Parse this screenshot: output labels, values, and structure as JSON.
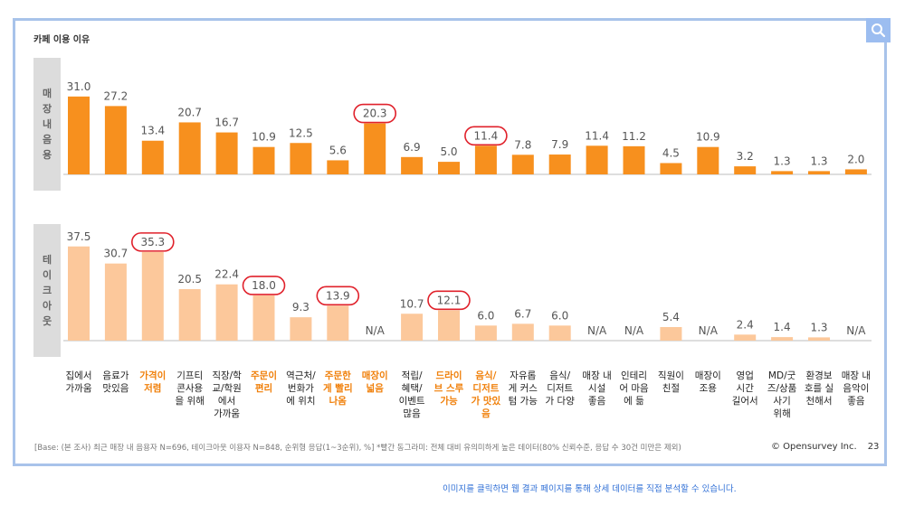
{
  "title": "카페 이용 이유",
  "side_labels": {
    "top": "매장내음용",
    "bottom": "테이크아웃"
  },
  "footnote": "[Base: (본 조사) 최근 매장 내 음용자 N=696, 테이크아웃 이용자 N=848, 순위형 응답(1~3순위), %] *빨간 동그라미: 전체 대비 유의미하게 높은 데이터(80% 신뢰수준, 응답 수 30건 미만은 제외)",
  "copyright": "© Opensurvey Inc.",
  "page_number": "23",
  "click_hint": "이미지를 클릭하면 웹 결과 페이지를 통해 상세 데이터를 직접 분석할 수 있습니다.",
  "icons": {
    "search": "search-icon"
  },
  "colors": {
    "dine_in": "#f7901e",
    "takeout": "#fcc89b",
    "highlight_text": "#f07f09",
    "circle": "#e0212b",
    "border": "#a8c3ea"
  },
  "chart_data": {
    "type": "bar",
    "title": "카페 이용 이유",
    "categories": [
      "집에서\n가까움",
      "음료가\n맛있음",
      "가격이\n저렴",
      "기프티\n콘사용\n을 위해",
      "직장/학\n교/학원\n에서\n가까움",
      "주문이\n편리",
      "역근처/\n번화가\n에 위치",
      "주문한\n게 빨리\n나옴",
      "매장이\n넓음",
      "적립/\n혜택/\n이벤트\n많음",
      "드라이\n브 스루\n가능",
      "음식/\n디저트\n가 맛있\n음",
      "자유롭\n게 커스\n텀 가능",
      "음식/\n디저트\n가 다양",
      "매장 내\n시설\n좋음",
      "인테리\n어 마음\n에 듦",
      "직원이\n친절",
      "매장이\n조용",
      "영업\n시간\n길어서",
      "MD/굿\n즈/상품\n사기\n위해",
      "환경보\n호를 실\n천해서",
      "매장 내\n음악이\n좋음"
    ],
    "highlighted_categories": [
      2,
      5,
      7,
      8,
      10,
      11
    ],
    "series": [
      {
        "name": "매장내음용",
        "values": [
          31.0,
          27.2,
          13.4,
          20.7,
          16.7,
          10.9,
          12.5,
          5.6,
          20.3,
          6.9,
          5.0,
          11.4,
          7.8,
          7.9,
          11.4,
          11.2,
          4.5,
          10.9,
          3.2,
          1.3,
          1.3,
          2.0
        ],
        "labels": [
          "31.0",
          "27.2",
          "13.4",
          "20.7",
          "16.7",
          "10.9",
          "12.5",
          "5.6",
          "20.3",
          "6.9",
          "5.0",
          "11.4",
          "7.8",
          "7.9",
          "11.4",
          "11.2",
          "4.5",
          "10.9",
          "3.2",
          "1.3",
          "1.3",
          "2.0"
        ],
        "circled": [
          8,
          11
        ]
      },
      {
        "name": "테이크아웃",
        "values": [
          37.5,
          30.7,
          35.3,
          20.5,
          22.4,
          18.0,
          9.3,
          13.9,
          null,
          10.7,
          12.1,
          6.0,
          6.7,
          6.0,
          null,
          null,
          5.4,
          null,
          2.4,
          1.4,
          1.3,
          null
        ],
        "labels": [
          "37.5",
          "30.7",
          "35.3",
          "20.5",
          "22.4",
          "18.0",
          "9.3",
          "13.9",
          "N/A",
          "10.7",
          "12.1",
          "6.0",
          "6.7",
          "6.0",
          "N/A",
          "N/A",
          "5.4",
          "N/A",
          "2.4",
          "1.4",
          "1.3",
          "N/A"
        ],
        "circled": [
          2,
          5,
          7,
          10
        ]
      }
    ]
  }
}
